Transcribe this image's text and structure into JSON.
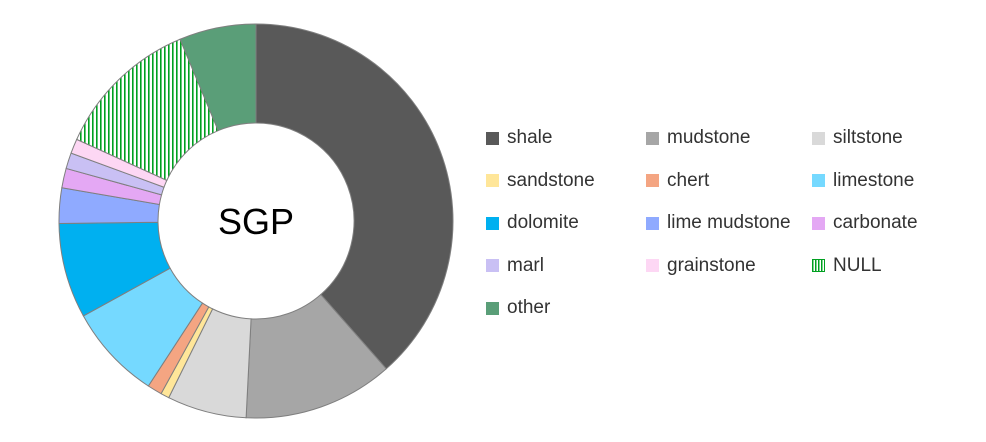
{
  "chart_data": {
    "type": "pie",
    "variant": "donut",
    "center_label": "SGP",
    "legend_position": "right",
    "series": [
      {
        "name": "shale",
        "value": 38.5,
        "color": "#595959"
      },
      {
        "name": "mudstone",
        "value": 12.3,
        "color": "#a6a6a6"
      },
      {
        "name": "siltstone",
        "value": 6.5,
        "color": "#d9d9d9"
      },
      {
        "name": "sandstone",
        "value": 0.7,
        "color": "#ffe699"
      },
      {
        "name": "chert",
        "value": 1.2,
        "color": "#f4a582"
      },
      {
        "name": "limestone",
        "value": 7.8,
        "color": "#75d9ff"
      },
      {
        "name": "dolomite",
        "value": 7.8,
        "color": "#00b0f0"
      },
      {
        "name": "lime mudstone",
        "value": 2.9,
        "color": "#8faaff"
      },
      {
        "name": "carbonate",
        "value": 1.6,
        "color": "#e4a8f4"
      },
      {
        "name": "marl",
        "value": 1.3,
        "color": "#c9c0f4"
      },
      {
        "name": "grainstone",
        "value": 1.2,
        "color": "#fdd7f4"
      },
      {
        "name": "NULL",
        "value": 11.9,
        "color": "#00a020",
        "pattern": "vertical-stripes"
      },
      {
        "name": "other",
        "value": 6.3,
        "color": "#5a9e78"
      }
    ]
  }
}
